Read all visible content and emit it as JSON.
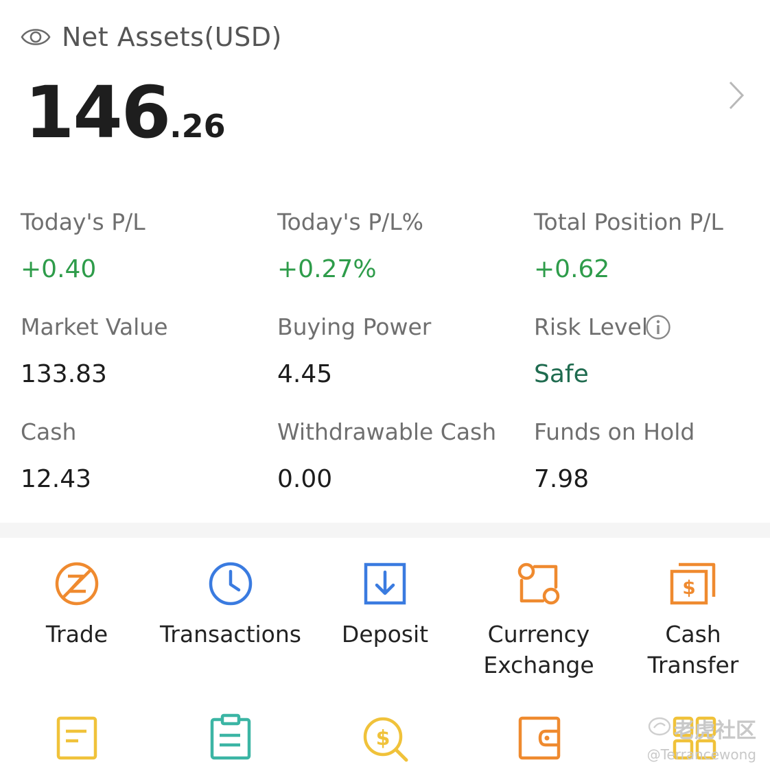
{
  "header": {
    "title": "Net Assets(USD)",
    "visibility_icon": "eye-icon",
    "detail_icon": "chevron-right-icon"
  },
  "net_assets": {
    "integer": "146",
    "decimal": ".26"
  },
  "metrics": [
    {
      "label": "Today's P/L",
      "value": "+0.40",
      "tone": "positive"
    },
    {
      "label": "Today's P/L%",
      "value": "+0.27%",
      "tone": "positive"
    },
    {
      "label": "Total Position P/L",
      "value": "+0.62",
      "tone": "positive"
    },
    {
      "label": "Market Value",
      "value": "133.83",
      "tone": "neutral"
    },
    {
      "label": "Buying Power",
      "value": "4.45",
      "tone": "neutral"
    },
    {
      "label": "Risk Level",
      "value": "Safe",
      "tone": "safe",
      "icon": "info-icon"
    },
    {
      "label": "Cash",
      "value": "12.43",
      "tone": "neutral"
    },
    {
      "label": "Withdrawable Cash",
      "value": "0.00",
      "tone": "neutral"
    },
    {
      "label": "Funds on Hold",
      "value": "7.98",
      "tone": "neutral"
    }
  ],
  "actions": [
    {
      "label": "Trade",
      "icon": "trade-icon"
    },
    {
      "label": "Transactions",
      "icon": "clock-icon"
    },
    {
      "label": "Deposit",
      "icon": "deposit-icon"
    },
    {
      "label": "Currency Exchange",
      "line1": "Currency",
      "line2": "Exchange",
      "icon": "currency-exchange-icon"
    },
    {
      "label": "Cash Transfer",
      "line1": "Cash",
      "line2": "Transfer",
      "icon": "cash-transfer-icon"
    }
  ],
  "actions_row2": [
    {
      "icon": "orders-document-icon"
    },
    {
      "icon": "clipboard-icon"
    },
    {
      "icon": "dollar-search-icon"
    },
    {
      "icon": "wallet-icon"
    },
    {
      "icon": "grid-apps-icon"
    }
  ],
  "watermark": {
    "brand": "老虎社区",
    "handle": "@Terrancewong"
  },
  "colors": {
    "positive": "#2e9c4a",
    "safe": "#1f6b4f",
    "orange": "#ef8a2f",
    "blue": "#3a7be0",
    "yellow": "#f0c23a",
    "teal": "#3bb5a4"
  }
}
